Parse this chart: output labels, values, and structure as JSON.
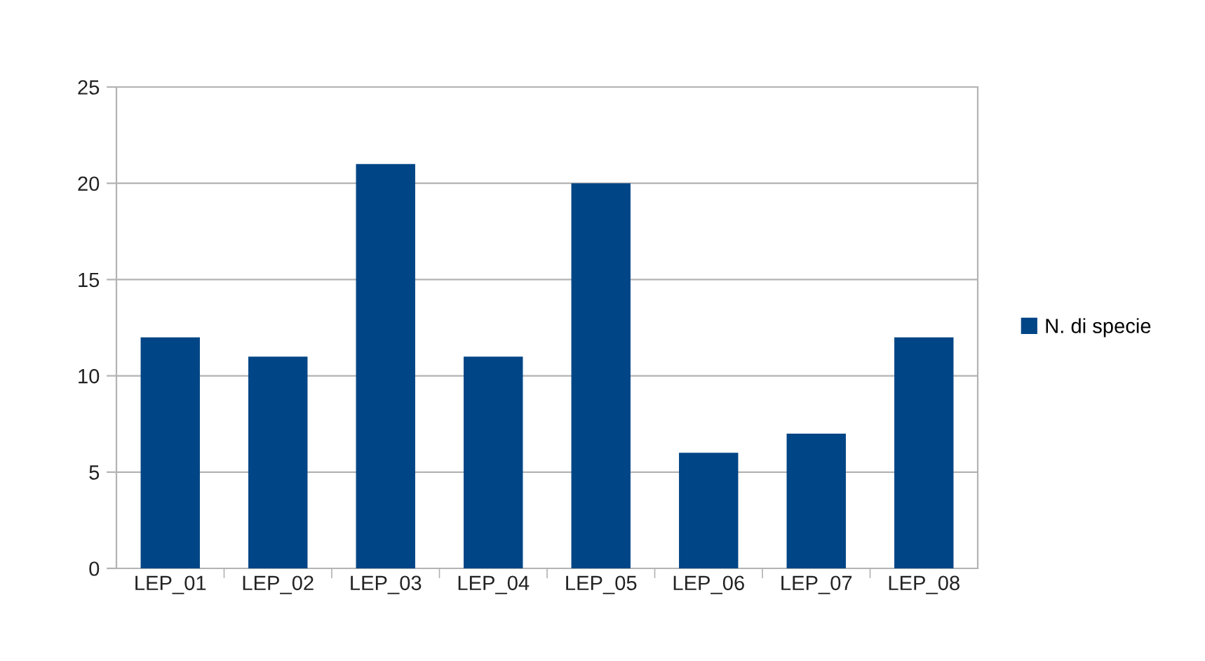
{
  "chart_data": {
    "type": "bar",
    "categories": [
      "LEP_01",
      "LEP_02",
      "LEP_03",
      "LEP_04",
      "LEP_05",
      "LEP_06",
      "LEP_07",
      "LEP_08"
    ],
    "series": [
      {
        "name": "N. di specie",
        "color": "#004586",
        "values": [
          12,
          11,
          21,
          11,
          20,
          6,
          7,
          12
        ]
      }
    ],
    "ylim": [
      0,
      25
    ],
    "yticks": [
      0,
      5,
      10,
      15,
      20,
      25
    ],
    "grid": "y",
    "legend": "right"
  }
}
